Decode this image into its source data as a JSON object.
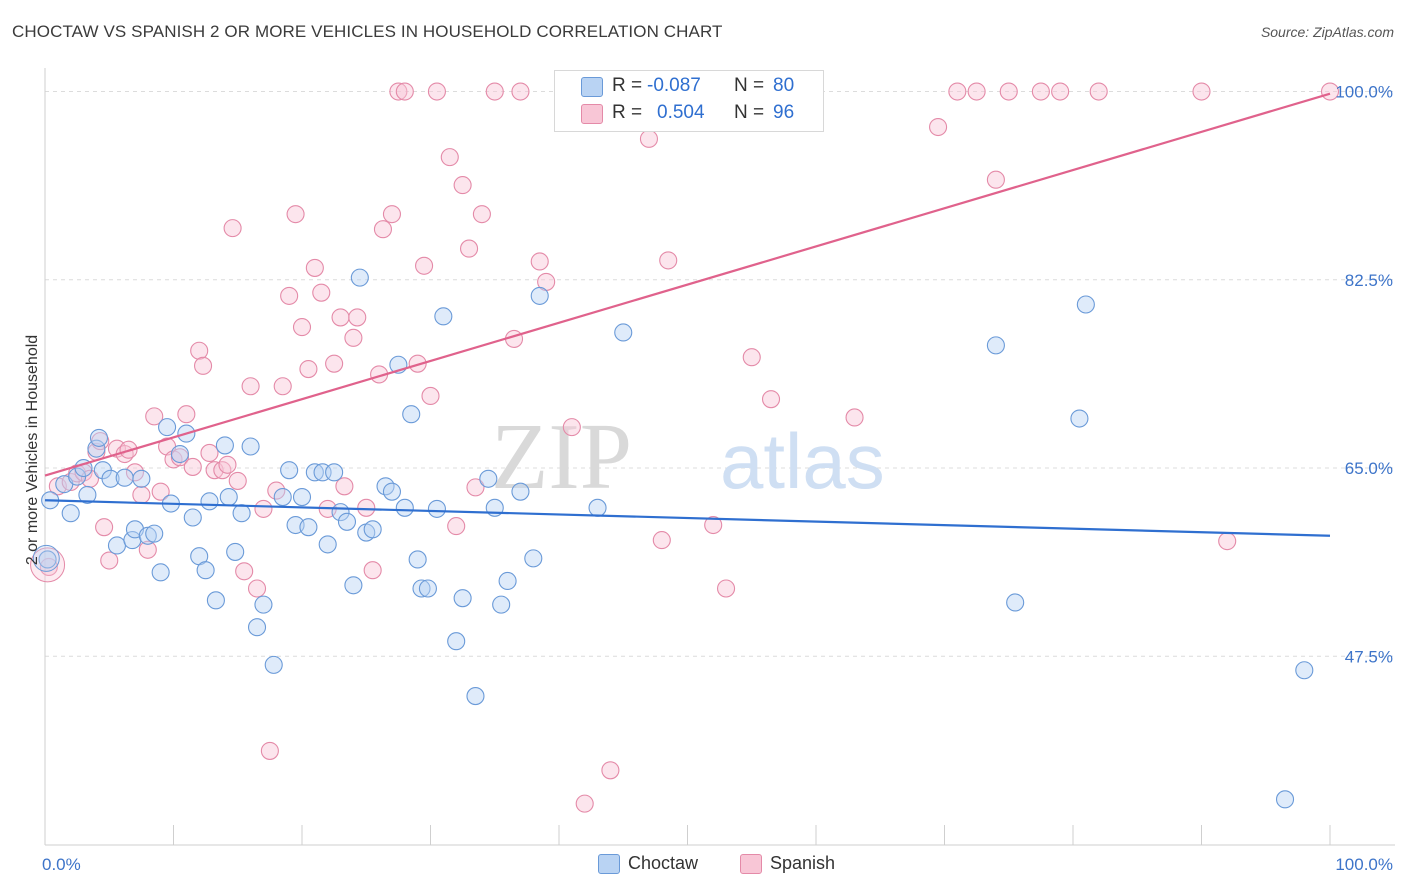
{
  "title": "CHOCTAW VS SPANISH 2 OR MORE VEHICLES IN HOUSEHOLD CORRELATION CHART",
  "source": "Source: ZipAtlas.com",
  "watermark": {
    "part1": "ZIP",
    "part2": "atlas"
  },
  "legend": {
    "rows": [
      {
        "r_label": "R =",
        "r_value": "-0.087",
        "n_label": "N =",
        "n_value": "80"
      },
      {
        "r_label": "R =",
        "r_value": "0.504",
        "n_label": "N =",
        "n_value": "96"
      }
    ]
  },
  "bottom_legend": [
    "Choctaw",
    "Spanish"
  ],
  "chart_data": {
    "type": "scatter",
    "xlabel": "",
    "ylabel": "2 or more Vehicles in Household",
    "xlim": [
      0,
      100
    ],
    "ylim": [
      32,
      102
    ],
    "x_tick_labels": [
      {
        "value": 0,
        "label": "0.0%"
      },
      {
        "value": 100,
        "label": "100.0%"
      }
    ],
    "y_tick_labels": [
      {
        "value": 47.5,
        "label": "47.5%"
      },
      {
        "value": 65.0,
        "label": "65.0%"
      },
      {
        "value": 82.5,
        "label": "82.5%"
      },
      {
        "value": 100.0,
        "label": "100.0%"
      }
    ],
    "colors": {
      "choctaw": "#6a9ad8",
      "choctaw_fill": "#b9d3f3",
      "spanish": "#e48aa8",
      "spanish_fill": "#f8c6d6",
      "choctaw_line": "#2f6fd0",
      "spanish_line": "#e0628c"
    },
    "series": [
      {
        "name": "Choctaw",
        "trend": [
          [
            0,
            62.0
          ],
          [
            100,
            58.7
          ]
        ],
        "points": [
          [
            0.2,
            56.5
          ],
          [
            0.4,
            62.0
          ],
          [
            1.5,
            63.5
          ],
          [
            2.0,
            60.8
          ],
          [
            2.5,
            64.2
          ],
          [
            3.0,
            65.0
          ],
          [
            3.3,
            62.5
          ],
          [
            4.0,
            66.8
          ],
          [
            4.2,
            67.8
          ],
          [
            4.5,
            64.8
          ],
          [
            5.1,
            64.0
          ],
          [
            5.6,
            57.8
          ],
          [
            6.2,
            64.1
          ],
          [
            6.8,
            58.3
          ],
          [
            7.0,
            59.3
          ],
          [
            7.5,
            64.0
          ],
          [
            8.0,
            58.7
          ],
          [
            8.5,
            58.9
          ],
          [
            9.0,
            55.3
          ],
          [
            9.5,
            68.8
          ],
          [
            9.8,
            61.7
          ],
          [
            10.5,
            66.3
          ],
          [
            11.0,
            68.2
          ],
          [
            11.5,
            60.4
          ],
          [
            12.0,
            56.8
          ],
          [
            12.5,
            55.5
          ],
          [
            12.8,
            61.9
          ],
          [
            13.3,
            52.7
          ],
          [
            14.0,
            67.1
          ],
          [
            14.3,
            62.3
          ],
          [
            14.8,
            57.2
          ],
          [
            15.3,
            60.8
          ],
          [
            16.0,
            67.0
          ],
          [
            16.5,
            50.2
          ],
          [
            17.0,
            52.3
          ],
          [
            17.8,
            46.7
          ],
          [
            18.5,
            62.3
          ],
          [
            19.0,
            64.8
          ],
          [
            19.5,
            59.7
          ],
          [
            20.0,
            62.3
          ],
          [
            20.5,
            59.5
          ],
          [
            21.0,
            64.6
          ],
          [
            21.6,
            64.6
          ],
          [
            22.0,
            57.9
          ],
          [
            22.5,
            64.6
          ],
          [
            23.0,
            60.9
          ],
          [
            23.5,
            60.0
          ],
          [
            24.0,
            54.1
          ],
          [
            24.5,
            82.7
          ],
          [
            25.0,
            59.0
          ],
          [
            25.5,
            59.3
          ],
          [
            26.5,
            63.3
          ],
          [
            27.0,
            62.8
          ],
          [
            27.5,
            74.6
          ],
          [
            28.0,
            61.3
          ],
          [
            28.5,
            70.0
          ],
          [
            29.0,
            56.5
          ],
          [
            29.3,
            53.8
          ],
          [
            29.8,
            53.8
          ],
          [
            30.5,
            61.2
          ],
          [
            31.0,
            79.1
          ],
          [
            32.0,
            48.9
          ],
          [
            32.5,
            52.9
          ],
          [
            33.5,
            43.8
          ],
          [
            34.5,
            64.0
          ],
          [
            35.0,
            61.3
          ],
          [
            35.5,
            52.3
          ],
          [
            36.0,
            54.5
          ],
          [
            37.0,
            62.8
          ],
          [
            38.0,
            56.6
          ],
          [
            38.5,
            81.0
          ],
          [
            43.0,
            61.3
          ],
          [
            45.0,
            77.6
          ],
          [
            74.0,
            76.4
          ],
          [
            75.5,
            52.5
          ],
          [
            80.5,
            69.6
          ],
          [
            81.0,
            80.2
          ],
          [
            98.0,
            46.2
          ],
          [
            96.5,
            34.2
          ]
        ]
      },
      {
        "name": "Spanish",
        "trend": [
          [
            0,
            64.3
          ],
          [
            100,
            99.8
          ]
        ],
        "points": [
          [
            0.3,
            55.8
          ],
          [
            1.0,
            63.3
          ],
          [
            2.0,
            63.7
          ],
          [
            2.5,
            64.5
          ],
          [
            3.0,
            64.6
          ],
          [
            3.5,
            64.0
          ],
          [
            4.0,
            66.5
          ],
          [
            4.3,
            67.5
          ],
          [
            4.6,
            59.5
          ],
          [
            5.0,
            56.4
          ],
          [
            5.6,
            66.8
          ],
          [
            6.2,
            66.3
          ],
          [
            6.5,
            66.7
          ],
          [
            7.0,
            64.6
          ],
          [
            7.5,
            62.5
          ],
          [
            8.0,
            57.4
          ],
          [
            8.5,
            69.8
          ],
          [
            9.0,
            62.8
          ],
          [
            9.5,
            67.0
          ],
          [
            10.0,
            65.8
          ],
          [
            10.5,
            66.0
          ],
          [
            11.0,
            70.0
          ],
          [
            11.5,
            65.1
          ],
          [
            12.0,
            75.9
          ],
          [
            12.3,
            74.5
          ],
          [
            12.8,
            66.4
          ],
          [
            13.2,
            64.8
          ],
          [
            13.8,
            64.8
          ],
          [
            14.2,
            65.3
          ],
          [
            14.6,
            87.3
          ],
          [
            15.0,
            63.8
          ],
          [
            15.5,
            55.4
          ],
          [
            16.0,
            72.6
          ],
          [
            16.5,
            53.8
          ],
          [
            17.0,
            61.2
          ],
          [
            17.5,
            38.7
          ],
          [
            18.0,
            62.9
          ],
          [
            18.5,
            72.6
          ],
          [
            19.0,
            81.0
          ],
          [
            19.5,
            88.6
          ],
          [
            20.0,
            78.1
          ],
          [
            20.5,
            74.2
          ],
          [
            21.0,
            83.6
          ],
          [
            21.5,
            81.3
          ],
          [
            22.0,
            61.2
          ],
          [
            22.5,
            74.7
          ],
          [
            23.0,
            79.0
          ],
          [
            23.3,
            63.3
          ],
          [
            24.0,
            77.1
          ],
          [
            24.3,
            79.0
          ],
          [
            25.0,
            61.3
          ],
          [
            25.5,
            55.5
          ],
          [
            26.0,
            73.7
          ],
          [
            26.3,
            87.2
          ],
          [
            27.0,
            88.6
          ],
          [
            27.5,
            100.0
          ],
          [
            28.0,
            100.0
          ],
          [
            29.0,
            74.7
          ],
          [
            29.5,
            83.8
          ],
          [
            30.0,
            71.7
          ],
          [
            30.5,
            100.0
          ],
          [
            31.5,
            93.9
          ],
          [
            32.0,
            59.6
          ],
          [
            32.5,
            91.3
          ],
          [
            33.0,
            85.4
          ],
          [
            33.5,
            63.2
          ],
          [
            34.0,
            88.6
          ],
          [
            35.0,
            100.0
          ],
          [
            36.5,
            77.0
          ],
          [
            37.0,
            100.0
          ],
          [
            38.5,
            84.2
          ],
          [
            39.0,
            82.3
          ],
          [
            41.0,
            68.8
          ],
          [
            42.0,
            33.8
          ],
          [
            44.0,
            36.9
          ],
          [
            45.0,
            100.0
          ],
          [
            47.0,
            95.6
          ],
          [
            48.0,
            58.3
          ],
          [
            48.5,
            84.3
          ],
          [
            49.0,
            100.0
          ],
          [
            52.0,
            59.7
          ],
          [
            53.0,
            53.8
          ],
          [
            55.0,
            75.3
          ],
          [
            56.5,
            71.4
          ],
          [
            57.0,
            100.0
          ],
          [
            63.0,
            69.7
          ],
          [
            69.5,
            96.7
          ],
          [
            71.0,
            100.0
          ],
          [
            72.5,
            100.0
          ],
          [
            74.0,
            91.8
          ],
          [
            75.0,
            100.0
          ],
          [
            77.5,
            100.0
          ],
          [
            79.0,
            100.0
          ],
          [
            82.0,
            100.0
          ],
          [
            90.0,
            100.0
          ],
          [
            92.0,
            58.2
          ],
          [
            100.0,
            100.0
          ]
        ]
      }
    ]
  }
}
